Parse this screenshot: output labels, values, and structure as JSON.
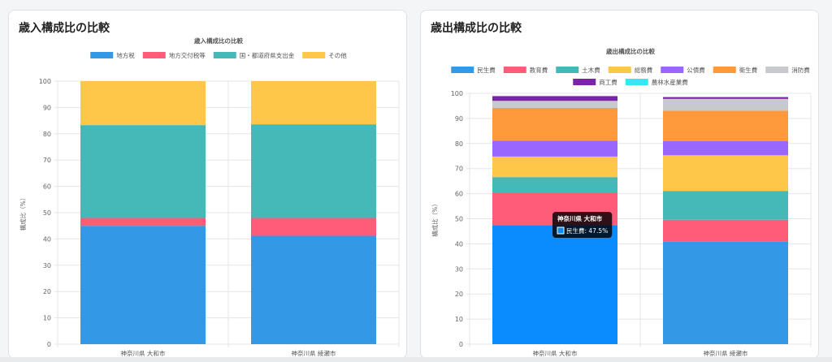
{
  "left_card": {
    "title": "歳入構成比の比較"
  },
  "right_card": {
    "title": "歳出構成比の比較"
  },
  "chart_data": [
    {
      "type": "bar",
      "stacked": true,
      "title": "歳入構成比の比較",
      "ylabel": "構成比（%）",
      "ylim": [
        0,
        100
      ],
      "yticks": [
        0,
        10,
        20,
        30,
        40,
        50,
        60,
        70,
        80,
        90,
        100
      ],
      "categories": [
        "神奈川県 大和市",
        "神奈川県 綾瀬市"
      ],
      "legend_position": "top",
      "series": [
        {
          "name": "地方税",
          "color": "#3399e6",
          "values": [
            45,
            41.2
          ]
        },
        {
          "name": "地方交付税等",
          "color": "#ff5c7a",
          "values": [
            3,
            6.8
          ]
        },
        {
          "name": "国・都道府県支出金",
          "color": "#45b8b8",
          "values": [
            35.3,
            35.6
          ]
        },
        {
          "name": "その他",
          "color": "#ffc74a",
          "values": [
            16.7,
            16.4
          ]
        }
      ]
    },
    {
      "type": "bar",
      "stacked": true,
      "title": "歳出構成比の比較",
      "ylabel": "構成比（%）",
      "ylim": [
        0,
        100
      ],
      "yticks": [
        0,
        10,
        20,
        30,
        40,
        50,
        60,
        70,
        80,
        90,
        100
      ],
      "categories": [
        "神奈川県 大和市",
        "神奈川県 綾瀬市"
      ],
      "legend_position": "top",
      "series": [
        {
          "name": "民生費",
          "color": "#3399e6",
          "values": [
            47.5,
            40.8
          ]
        },
        {
          "name": "教育費",
          "color": "#ff5c7a",
          "values": [
            13,
            8.8
          ]
        },
        {
          "name": "土木費",
          "color": "#45b8b8",
          "values": [
            6.1,
            11.5
          ]
        },
        {
          "name": "総務費",
          "color": "#ffc74a",
          "values": [
            8.2,
            14.2
          ]
        },
        {
          "name": "公債費",
          "color": "#9966ff",
          "values": [
            6.3,
            5.6
          ]
        },
        {
          "name": "衛生費",
          "color": "#ff9a3c",
          "values": [
            13.1,
            12.2
          ]
        },
        {
          "name": "消防費",
          "color": "#c7c9cd",
          "values": [
            2.8,
            4.7
          ]
        },
        {
          "name": "商工費",
          "color": "#7b24a8",
          "values": [
            1.9,
            0.6
          ]
        },
        {
          "name": "農林水産業費",
          "color": "#36e6f0",
          "values": [
            0,
            0.3
          ]
        }
      ],
      "tooltip": {
        "title": "神奈川県 大和市",
        "label": "民生費: 47.5%"
      }
    }
  ]
}
